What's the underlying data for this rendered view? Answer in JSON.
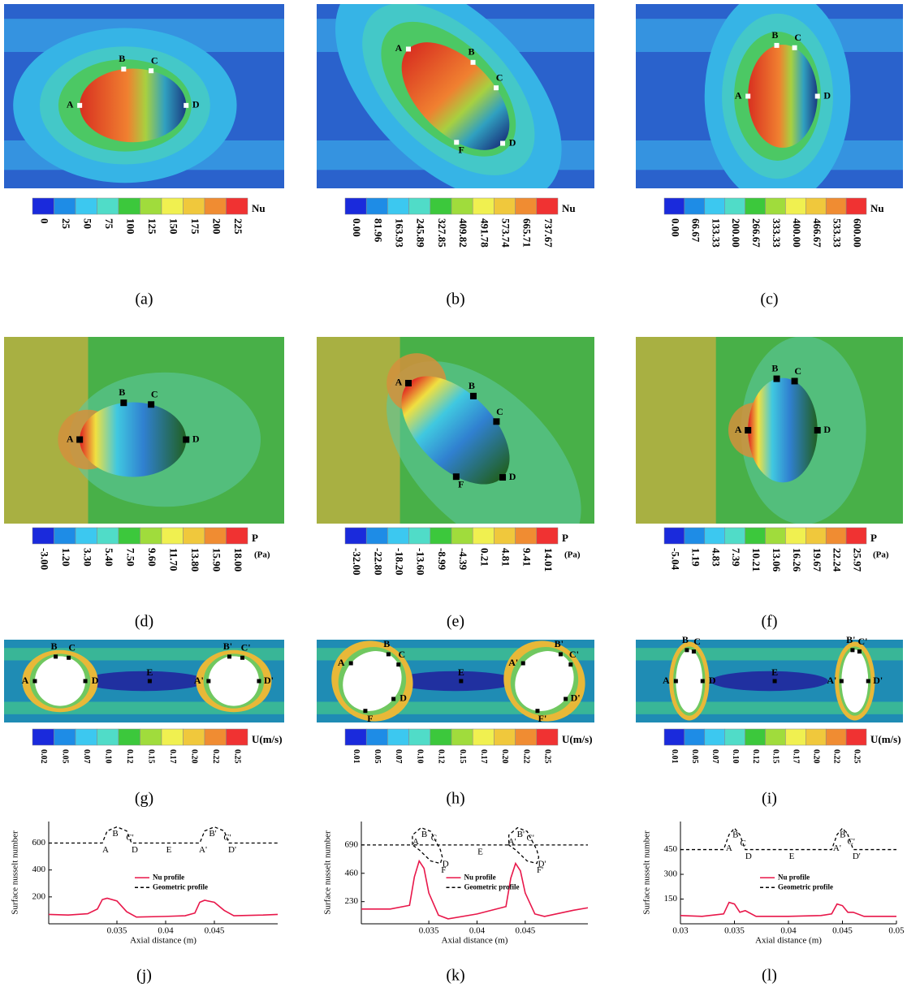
{
  "panels": [
    {
      "caption": "(a)",
      "colorbar": {
        "title": "Nu",
        "labels": [
          "0",
          "25",
          "50",
          "75",
          "100",
          "125",
          "150",
          "175",
          "200",
          "225"
        ]
      },
      "points": [
        "A",
        "B",
        "C",
        "D"
      ]
    },
    {
      "caption": "(b)",
      "colorbar": {
        "title": "Nu",
        "labels": [
          "0.00",
          "81.96",
          "163.93",
          "245.89",
          "327.85",
          "409.82",
          "491.78",
          "573.74",
          "665.71",
          "737.67"
        ]
      },
      "points": [
        "A",
        "B",
        "C",
        "D",
        "F"
      ]
    },
    {
      "caption": "(c)",
      "colorbar": {
        "title": "Nu",
        "labels": [
          "0.00",
          "66.67",
          "133.33",
          "200.00",
          "266.67",
          "333.33",
          "400.00",
          "466.67",
          "533.33",
          "600.00"
        ]
      },
      "points": [
        "A",
        "B",
        "C",
        "D"
      ]
    },
    {
      "caption": "(d)",
      "colorbar": {
        "title": "P",
        "unit": "(Pa)",
        "labels": [
          "-3.00",
          "1.20",
          "3.30",
          "5.40",
          "7.50",
          "9.60",
          "11.70",
          "13.80",
          "15.90",
          "18.00"
        ]
      },
      "points": [
        "A",
        "B",
        "C",
        "D"
      ]
    },
    {
      "caption": "(e)",
      "colorbar": {
        "title": "P",
        "unit": "(Pa)",
        "labels": [
          "-32.00",
          "-22.80",
          "-18.20",
          "-13.60",
          "-8.99",
          "-4.39",
          "0.21",
          "4.81",
          "9.41",
          "14.01"
        ]
      },
      "points": [
        "A",
        "B",
        "C",
        "D",
        "F"
      ]
    },
    {
      "caption": "(f)",
      "colorbar": {
        "title": "P",
        "unit": "(Pa)",
        "labels": [
          "-5.04",
          "1.19",
          "4.83",
          "7.39",
          "10.21",
          "13.06",
          "16.26",
          "19.67",
          "22.24",
          "25.97"
        ]
      },
      "points": [
        "A",
        "B",
        "C",
        "D"
      ]
    },
    {
      "caption": "(g)",
      "colorbar": {
        "title": "U(m/s)",
        "labels": [
          "0.02",
          "0.05",
          "0.07",
          "0.10",
          "0.12",
          "0.15",
          "0.17",
          "0.20",
          "0.22",
          "0.25"
        ]
      },
      "points": [
        "A",
        "B",
        "C",
        "D",
        "E",
        "A'",
        "B'",
        "C'",
        "D'"
      ]
    },
    {
      "caption": "(h)",
      "colorbar": {
        "title": "U(m/s)",
        "labels": [
          "0.01",
          "0.05",
          "0.07",
          "0.10",
          "0.12",
          "0.15",
          "0.17",
          "0.20",
          "0.22",
          "0.25"
        ]
      },
      "points": [
        "A",
        "B",
        "C",
        "D",
        "F",
        "E",
        "A'",
        "B'",
        "C'",
        "D'",
        "F'"
      ]
    },
    {
      "caption": "(i)",
      "colorbar": {
        "title": "U(m/s)",
        "labels": [
          "0.01",
          "0.05",
          "0.07",
          "0.10",
          "0.12",
          "0.15",
          "0.17",
          "0.20",
          "0.22",
          "0.25"
        ]
      },
      "points": [
        "A",
        "B",
        "C",
        "D",
        "E",
        "A'",
        "B'",
        "C'",
        "D'"
      ]
    }
  ],
  "chart_data": [
    {
      "type": "line",
      "caption": "(j)",
      "xlabel": "Axial distance (m)",
      "ylabel": "Surface nusselt number",
      "xlim": [
        0.028,
        0.0515
      ],
      "ylim": [
        0,
        760
      ],
      "xticks": [
        0.035,
        0.04,
        0.045
      ],
      "yticks": [
        200,
        400,
        600
      ],
      "legend": "center",
      "series": [
        {
          "name": "Nu profile",
          "color": "#e8174a",
          "dashed": false,
          "x": [
            0.028,
            0.03,
            0.032,
            0.033,
            0.0335,
            0.034,
            0.035,
            0.036,
            0.037,
            0.04,
            0.042,
            0.043,
            0.0435,
            0.044,
            0.045,
            0.046,
            0.047,
            0.05,
            0.0515
          ],
          "values": [
            70,
            65,
            75,
            110,
            180,
            190,
            170,
            90,
            50,
            55,
            60,
            80,
            160,
            175,
            160,
            100,
            60,
            65,
            70
          ]
        },
        {
          "name": "Geometric profile",
          "color": "#000000",
          "dashed": true,
          "x": [
            0.028,
            0.0335,
            0.034,
            0.035,
            0.036,
            0.0365,
            0.0435,
            0.044,
            0.045,
            0.046,
            0.0465,
            0.0515
          ],
          "values": [
            600,
            600,
            690,
            720,
            690,
            600,
            600,
            690,
            720,
            690,
            600,
            600
          ]
        }
      ],
      "annotations": [
        {
          "text": "A",
          "x": 0.0335,
          "y": 600
        },
        {
          "text": "B",
          "x": 0.0345,
          "y": 720
        },
        {
          "text": "C'",
          "x": 0.036,
          "y": 690
        },
        {
          "text": "D",
          "x": 0.0365,
          "y": 600
        },
        {
          "text": "E",
          "x": 0.04,
          "y": 600
        },
        {
          "text": "A'",
          "x": 0.0435,
          "y": 600
        },
        {
          "text": "B'",
          "x": 0.0445,
          "y": 720
        },
        {
          "text": "C'",
          "x": 0.046,
          "y": 690
        },
        {
          "text": "D'",
          "x": 0.0465,
          "y": 600
        }
      ]
    },
    {
      "type": "line",
      "caption": "(k)",
      "xlabel": "Axial distance (m)",
      "ylabel": "Surface nusselt number",
      "xlim": [
        0.028,
        0.0515
      ],
      "ylim": [
        50,
        880
      ],
      "xticks": [
        0.035,
        0.04,
        0.045
      ],
      "yticks": [
        230,
        460,
        690
      ],
      "legend": "center",
      "series": [
        {
          "name": "Nu profile",
          "color": "#e8174a",
          "dashed": false,
          "x": [
            0.028,
            0.031,
            0.033,
            0.0335,
            0.034,
            0.0345,
            0.035,
            0.036,
            0.037,
            0.04,
            0.043,
            0.0435,
            0.044,
            0.0445,
            0.045,
            0.046,
            0.047,
            0.05,
            0.0515
          ],
          "values": [
            170,
            170,
            200,
            430,
            560,
            500,
            300,
            120,
            90,
            130,
            190,
            420,
            540,
            480,
            300,
            130,
            110,
            160,
            180
          ]
        },
        {
          "name": "Geometric profile",
          "color": "#000000",
          "dashed": true,
          "x": [
            0.028,
            0.0333,
            0.0333,
            0.0342,
            0.0352,
            0.0362,
            0.0364,
            0.0362,
            0.0352,
            0.034,
            0.0333,
            0.0433,
            0.0433,
            0.0442,
            0.0452,
            0.0462,
            0.0464,
            0.0462,
            0.0452,
            0.044,
            0.0433,
            0.0515
          ],
          "values": [
            690,
            690,
            770,
            830,
            800,
            650,
            590,
            540,
            560,
            650,
            690,
            690,
            770,
            830,
            800,
            650,
            590,
            540,
            560,
            650,
            690,
            690
          ]
        }
      ],
      "annotations": [
        {
          "text": "A",
          "x": 0.0333,
          "y": 770
        },
        {
          "text": "B",
          "x": 0.0342,
          "y": 830
        },
        {
          "text": "C",
          "x": 0.0352,
          "y": 800
        },
        {
          "text": "D",
          "x": 0.0364,
          "y": 590
        },
        {
          "text": "F",
          "x": 0.0362,
          "y": 540
        },
        {
          "text": "E",
          "x": 0.04,
          "y": 690
        },
        {
          "text": "A'",
          "x": 0.0433,
          "y": 770
        },
        {
          "text": "B'",
          "x": 0.0442,
          "y": 830
        },
        {
          "text": "C'",
          "x": 0.0452,
          "y": 800
        },
        {
          "text": "D'",
          "x": 0.0464,
          "y": 590
        },
        {
          "text": "F'",
          "x": 0.0462,
          "y": 540
        }
      ]
    },
    {
      "type": "line",
      "caption": "(l)",
      "xlabel": "Axial distance (m)",
      "ylabel": "Surface nusselt number",
      "xlim": [
        0.03,
        0.05
      ],
      "ylim": [
        0,
        620
      ],
      "xticks": [
        0.03,
        0.035,
        0.04,
        0.045,
        0.05
      ],
      "yticks": [
        150,
        300,
        450
      ],
      "legend": "center",
      "series": [
        {
          "name": "Nu profile",
          "color": "#e8174a",
          "dashed": false,
          "x": [
            0.03,
            0.032,
            0.034,
            0.0345,
            0.035,
            0.0355,
            0.036,
            0.037,
            0.04,
            0.043,
            0.044,
            0.0445,
            0.045,
            0.0455,
            0.046,
            0.047,
            0.05
          ],
          "values": [
            50,
            45,
            60,
            130,
            120,
            70,
            80,
            45,
            45,
            50,
            60,
            120,
            110,
            70,
            70,
            45,
            45
          ]
        },
        {
          "name": "Geometric profile",
          "color": "#000000",
          "dashed": true,
          "x": [
            0.03,
            0.034,
            0.0345,
            0.035,
            0.0355,
            0.036,
            0.044,
            0.0445,
            0.045,
            0.0455,
            0.046,
            0.05
          ],
          "values": [
            450,
            450,
            540,
            580,
            540,
            450,
            450,
            540,
            580,
            540,
            450,
            450
          ]
        }
      ],
      "annotations": [
        {
          "text": "A",
          "x": 0.0342,
          "y": 500
        },
        {
          "text": "B",
          "x": 0.0348,
          "y": 580
        },
        {
          "text": "C",
          "x": 0.0355,
          "y": 530
        },
        {
          "text": "D",
          "x": 0.036,
          "y": 450
        },
        {
          "text": "E",
          "x": 0.04,
          "y": 450
        },
        {
          "text": "A'",
          "x": 0.0442,
          "y": 500
        },
        {
          "text": "B'",
          "x": 0.0448,
          "y": 580
        },
        {
          "text": "C'",
          "x": 0.0455,
          "y": 540
        },
        {
          "text": "D'",
          "x": 0.046,
          "y": 450
        }
      ]
    }
  ]
}
